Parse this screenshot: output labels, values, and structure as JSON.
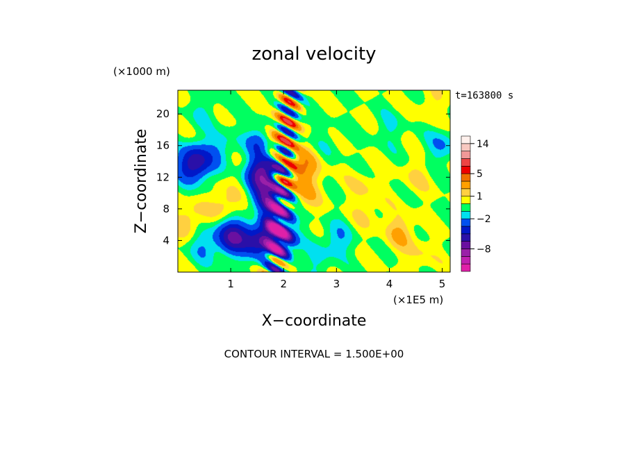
{
  "chart_data": {
    "type": "heatmap",
    "title": "zonal velocity",
    "xlabel": "X−coordinate",
    "ylabel": "Z−coordinate",
    "x_unit_label": "(×1E5 m)",
    "y_unit_label": "(×1000 m)",
    "time_label": "t=163800 s",
    "footer": "CONTOUR INTERVAL = 1.500E+00",
    "xlim": [
      0,
      5.15
    ],
    "ylim": [
      0,
      23
    ],
    "x_ticks": [
      "1",
      "2",
      "3",
      "4",
      "5"
    ],
    "x_tick_values": [
      1,
      2,
      3,
      4,
      5
    ],
    "y_ticks": [
      "4",
      "8",
      "12",
      "16",
      "20"
    ],
    "y_tick_values": [
      4,
      8,
      12,
      16,
      20
    ],
    "contour_interval": 1.5,
    "colorbar": {
      "levels": [
        -12.5,
        -11,
        -9.5,
        -8,
        -6.5,
        -5,
        -3.5,
        -2,
        -1,
        0,
        1,
        2,
        3.5,
        5,
        6.5,
        9.5,
        12.5,
        14,
        15.5
      ],
      "colors": [
        "#e020a8",
        "#c020b0",
        "#9a20a8",
        "#6a10a0",
        "#2a10a8",
        "#0018c8",
        "#0050f0",
        "#00e0f0",
        "#00ff60",
        "#ffff00",
        "#ffd040",
        "#ffa000",
        "#f07000",
        "#ee0000",
        "#ee4444",
        "#f09898",
        "#f8c8c0",
        "#fff0ec"
      ],
      "tick_labels": [
        "14",
        "5",
        "1",
        "−2",
        "−8"
      ],
      "tick_values": [
        14,
        5,
        1,
        -2,
        -8
      ]
    },
    "background_level": 0,
    "features": [
      {
        "x": 0.35,
        "z": 13.8,
        "value": -5
      },
      {
        "x": 0.2,
        "z": 13.5,
        "value": -2
      },
      {
        "x": 0.5,
        "z": 3.5,
        "value": -2
      },
      {
        "x": 0.8,
        "z": 15.5,
        "value": -2
      },
      {
        "x": 1.0,
        "z": 4.5,
        "value": -5
      },
      {
        "x": 1.2,
        "z": 4.8,
        "value": -2
      },
      {
        "x": 1.55,
        "z": 15.8,
        "value": -8
      },
      {
        "x": 1.6,
        "z": 12.5,
        "value": -8
      },
      {
        "x": 1.7,
        "z": 9.0,
        "value": -6.5
      },
      {
        "x": 1.9,
        "z": 13.0,
        "value": -8
      },
      {
        "x": 1.95,
        "z": 10.5,
        "value": -6.5
      },
      {
        "x": 1.92,
        "z": 4.0,
        "value": -8
      },
      {
        "x": 1.85,
        "z": 6.5,
        "value": -6.5
      },
      {
        "x": 1.5,
        "z": 4.0,
        "value": -5
      },
      {
        "x": 1.75,
        "z": 15.0,
        "value": 5
      },
      {
        "x": 2.0,
        "z": 11.5,
        "value": 5
      },
      {
        "x": 2.15,
        "z": 13.0,
        "value": 3.5
      },
      {
        "x": 1.85,
        "z": 11.8,
        "value": 5
      },
      {
        "x": 1.6,
        "z": 7.0,
        "value": 3.5
      },
      {
        "x": 1.45,
        "z": 15.2,
        "value": 3.5
      },
      {
        "x": 1.9,
        "z": 18.0,
        "value": 2
      },
      {
        "x": 2.5,
        "z": 14.0,
        "value": 2
      },
      {
        "x": 2.4,
        "z": 10.0,
        "value": 2
      },
      {
        "x": 0.2,
        "z": 6.5,
        "value": 2
      },
      {
        "x": 0.9,
        "z": 8.5,
        "value": 2
      },
      {
        "x": 4.2,
        "z": 5.0,
        "value": 2
      },
      {
        "x": 2.8,
        "z": 16.0,
        "value": -1
      },
      {
        "x": 3.0,
        "z": 4.0,
        "value": -2
      },
      {
        "x": 5.0,
        "z": 16.0,
        "value": -2
      },
      {
        "x": 2.6,
        "z": 1.0,
        "value": -1
      },
      {
        "x": 4.5,
        "z": 12.0,
        "value": 1
      },
      {
        "x": 3.5,
        "z": 11.0,
        "value": 1
      },
      {
        "x": 4.0,
        "z": 18.0,
        "value": -1
      },
      {
        "x": 4.8,
        "z": 21.0,
        "value": 1
      },
      {
        "x": 0.5,
        "z": 20.5,
        "value": -1
      },
      {
        "x": 3.5,
        "z": 20.0,
        "value": 0
      },
      {
        "x": 4.6,
        "z": 2.0,
        "value": 1
      },
      {
        "x": 3.6,
        "z": 7.5,
        "value": 1
      }
    ]
  }
}
